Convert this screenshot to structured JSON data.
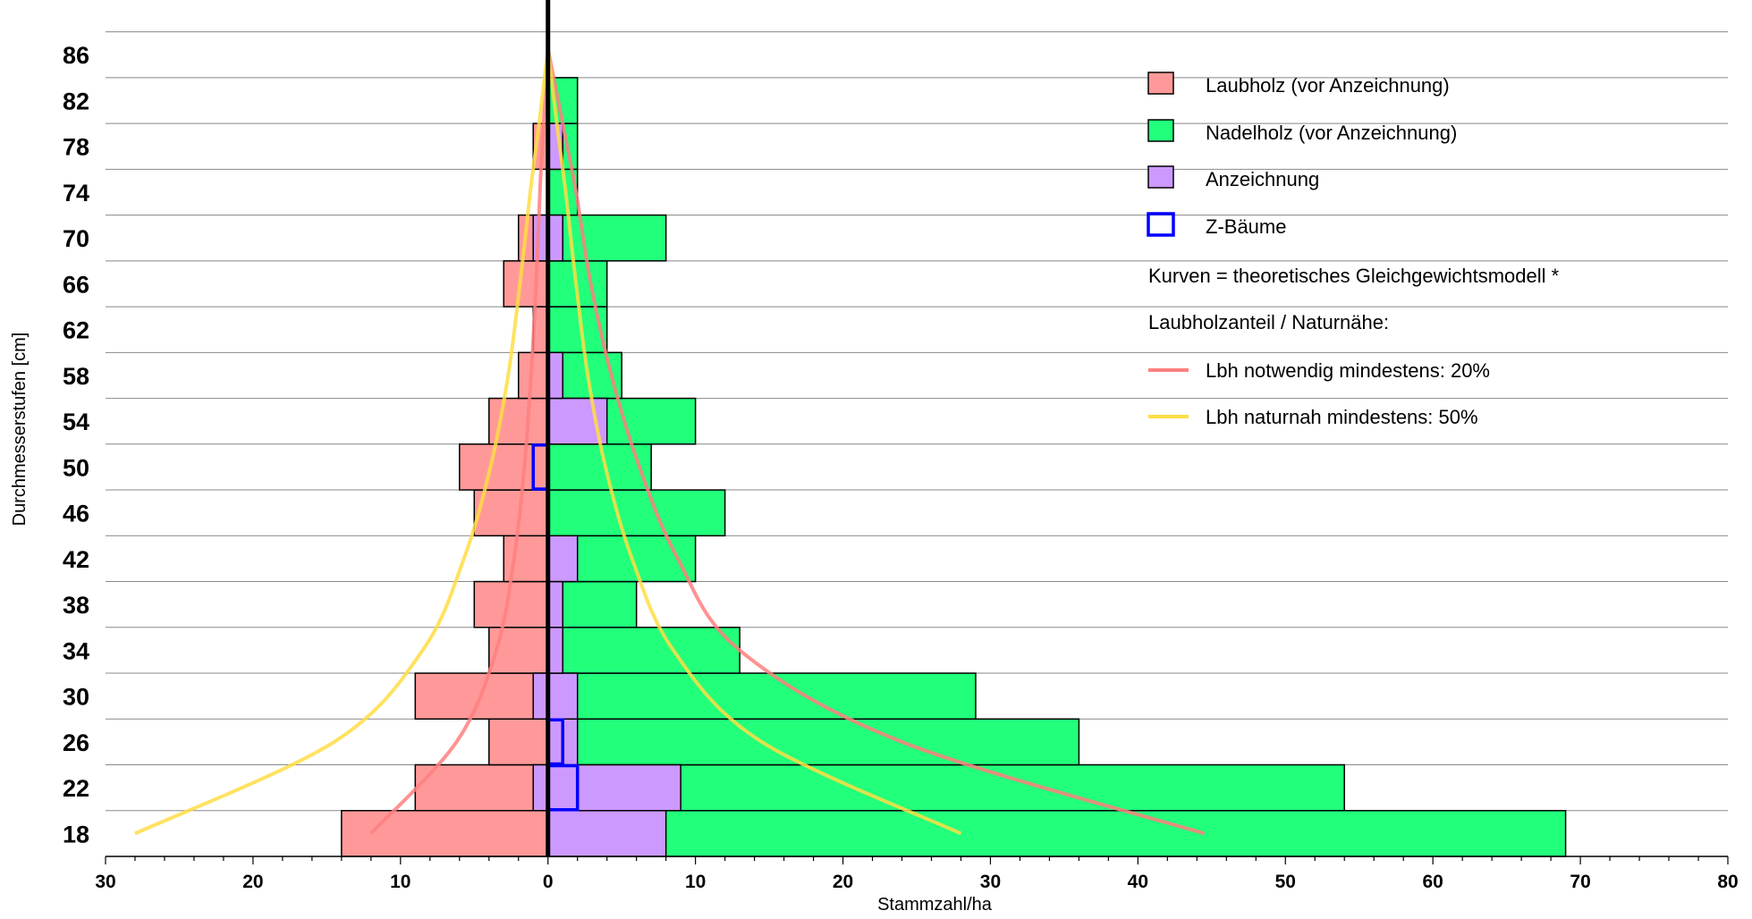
{
  "chart_data": {
    "type": "bar",
    "orientation": "horizontal-butterfly",
    "title": "",
    "xlabel": "Stammzahl/ha",
    "ylabel": "Durchmesserstufen [cm]",
    "xlim": [
      -30,
      80
    ],
    "x_ticks": [
      -30,
      -20,
      -10,
      0,
      10,
      20,
      30,
      40,
      50,
      60,
      70,
      80
    ],
    "x_tick_labels": [
      "30",
      "20",
      "10",
      "0",
      "10",
      "20",
      "30",
      "40",
      "50",
      "60",
      "70",
      "80"
    ],
    "categories": [
      "18",
      "22",
      "26",
      "30",
      "34",
      "38",
      "42",
      "46",
      "50",
      "54",
      "58",
      "62",
      "66",
      "70",
      "74",
      "78",
      "82",
      "86"
    ],
    "grid": "horizontal",
    "legend_position": "top-right",
    "series": [
      {
        "name": "Laubholz (vor Anzeichnung)",
        "color": "#ff9999",
        "direction": "left",
        "values": [
          14,
          9,
          4,
          9,
          4,
          5,
          3,
          5,
          6,
          4,
          2,
          1,
          3,
          2,
          0,
          1,
          0,
          0
        ]
      },
      {
        "name": "Nadelholz (vor Anzeichnung)",
        "color": "#21ff7b",
        "direction": "right",
        "values": [
          69,
          54,
          36,
          29,
          13,
          6,
          10,
          12,
          7,
          10,
          5,
          4,
          4,
          8,
          2,
          2,
          2,
          0
        ]
      },
      {
        "name": "Anzeichnung",
        "color": "#cc99ff",
        "side": "both",
        "left": [
          0,
          1,
          0,
          1,
          0,
          0,
          0,
          0,
          0,
          0,
          0,
          0,
          0,
          1,
          0,
          0,
          0,
          0
        ],
        "right": [
          8,
          9,
          2,
          2,
          1,
          1,
          2,
          0,
          0,
          4,
          1,
          0,
          0,
          1,
          0,
          1,
          0,
          0
        ]
      },
      {
        "name": "Z-Bäume",
        "color": "#0000ff",
        "style": "outline",
        "side": "both",
        "left": [
          0,
          0,
          0,
          0,
          0,
          0,
          0,
          0,
          1,
          0,
          0,
          0,
          0,
          0,
          0,
          0,
          0,
          0
        ],
        "right": [
          0,
          2,
          1,
          0,
          0,
          0,
          0,
          0,
          0,
          0,
          0,
          0,
          0,
          0,
          0,
          0,
          0,
          0
        ]
      }
    ],
    "legend_notes": [
      "Kurven = theoretisches Gleichgewichtsmodell *",
      "Laubholzanteil / Naturnähe:"
    ],
    "curves": [
      {
        "name": "Lbh notwendig mindestens: 20%",
        "color": "#ff7f7f",
        "left": [
          [
            12,
            18
          ],
          [
            6.2,
            26
          ],
          [
            3.5,
            34
          ],
          [
            2.3,
            42
          ],
          [
            1.6,
            50
          ],
          [
            1.15,
            58
          ],
          [
            0.8,
            66
          ],
          [
            0.55,
            74
          ],
          [
            0.3,
            80
          ],
          [
            0,
            86.5
          ]
        ],
        "right": [
          [
            44.5,
            18
          ],
          [
            24,
            26
          ],
          [
            13,
            34
          ],
          [
            8.8,
            42
          ],
          [
            6.2,
            50
          ],
          [
            4.3,
            58
          ],
          [
            2.9,
            66
          ],
          [
            1.9,
            74
          ],
          [
            1.0,
            80
          ],
          [
            0,
            86.5
          ]
        ]
      },
      {
        "name": "Lbh naturnah mindestens: 50%",
        "color": "#ffdd44",
        "left": [
          [
            28,
            18
          ],
          [
            14.5,
            26
          ],
          [
            8.5,
            34
          ],
          [
            5.7,
            42
          ],
          [
            3.9,
            50
          ],
          [
            2.7,
            58
          ],
          [
            1.9,
            66
          ],
          [
            1.2,
            74
          ],
          [
            0.6,
            80
          ],
          [
            0,
            86.5
          ]
        ],
        "right": [
          [
            28,
            18
          ],
          [
            14.5,
            26
          ],
          [
            8.5,
            34
          ],
          [
            5.7,
            42
          ],
          [
            3.9,
            50
          ],
          [
            2.7,
            58
          ],
          [
            1.9,
            66
          ],
          [
            1.2,
            74
          ],
          [
            0.6,
            80
          ],
          [
            0,
            86.5
          ]
        ]
      }
    ]
  }
}
